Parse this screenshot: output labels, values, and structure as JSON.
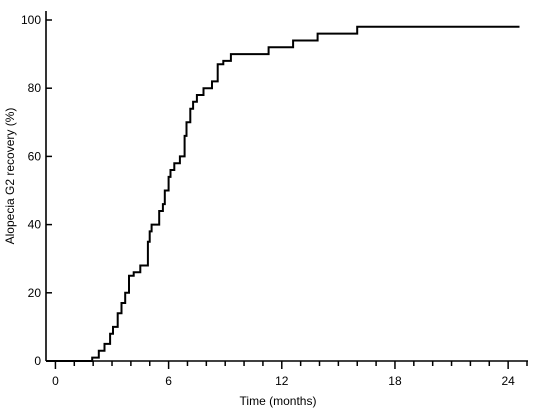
{
  "chart_data": {
    "type": "line",
    "step": true,
    "xlabel": "Time (months)",
    "ylabel": "Alopecia G2 recovery (%)",
    "xlim": [
      -0.5,
      25
    ],
    "ylim": [
      0,
      100
    ],
    "xticks": [
      0,
      6,
      12,
      18,
      24
    ],
    "xtick_labels": [
      "0",
      "6",
      "12",
      "18",
      "24"
    ],
    "xminor_step": 1,
    "yticks": [
      0,
      20,
      40,
      60,
      80,
      100
    ],
    "ytick_labels": [
      "0",
      "20",
      "40",
      "60",
      "80",
      "100"
    ],
    "grid": false,
    "series": [
      {
        "name": "",
        "color": "#000000",
        "x": [
          0,
          1.95,
          2.3,
          2.6,
          2.9,
          3.05,
          3.3,
          3.5,
          3.7,
          3.9,
          4.05,
          4.15,
          4.5,
          4.9,
          5.0,
          5.1,
          5.5,
          5.7,
          5.8,
          6.0,
          6.1,
          6.3,
          6.6,
          6.85,
          6.95,
          7.15,
          7.3,
          7.5,
          7.7,
          7.85,
          8.3,
          8.6,
          8.9,
          9.3,
          11.3,
          12.6,
          13.9,
          16.0
        ],
        "y": [
          0,
          1,
          3,
          5,
          8,
          10,
          14,
          17,
          20,
          25,
          25,
          26,
          28,
          35,
          38,
          40,
          44,
          46,
          50,
          54,
          56,
          58,
          60,
          66,
          70,
          74,
          76,
          78,
          78,
          80,
          82,
          87,
          88,
          90,
          92,
          94,
          96,
          98
        ]
      }
    ],
    "x_end": 24.6
  }
}
